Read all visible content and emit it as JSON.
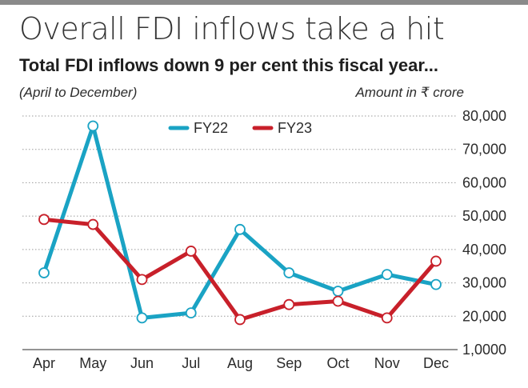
{
  "headline": "Overall FDI inflows take a hit",
  "subheadline": "Total FDI inflows down 9 per cent this fiscal year...",
  "period_note": "(April to December)",
  "unit_note": "Amount in ₹ crore",
  "colors": {
    "FY22": "#1aa3c4",
    "FY23": "#c8202a",
    "grid": "#9a9a9a",
    "topbar": "#8a8a8a"
  },
  "chart_data": {
    "type": "line",
    "categories": [
      "Apr",
      "May",
      "Jun",
      "Jul",
      "Aug",
      "Sep",
      "Oct",
      "Nov",
      "Dec"
    ],
    "series": [
      {
        "name": "FY22",
        "values": [
          33000,
          77000,
          19500,
          21000,
          46000,
          33000,
          27500,
          32500,
          29500
        ]
      },
      {
        "name": "FY23",
        "values": [
          49000,
          47500,
          31000,
          39500,
          19000,
          23500,
          24500,
          19500,
          36500
        ]
      }
    ],
    "y_tick_labels": [
      "80,000",
      "70,000",
      "60,000",
      "50,000",
      "40,000",
      "30,000",
      "20,000",
      "1,0000"
    ],
    "y_tick_values": [
      80000,
      70000,
      60000,
      50000,
      40000,
      30000,
      20000,
      10000
    ],
    "ylim": [
      10000,
      80000
    ],
    "legend_position": "top-center",
    "grid": true,
    "y_axis_side": "right"
  }
}
